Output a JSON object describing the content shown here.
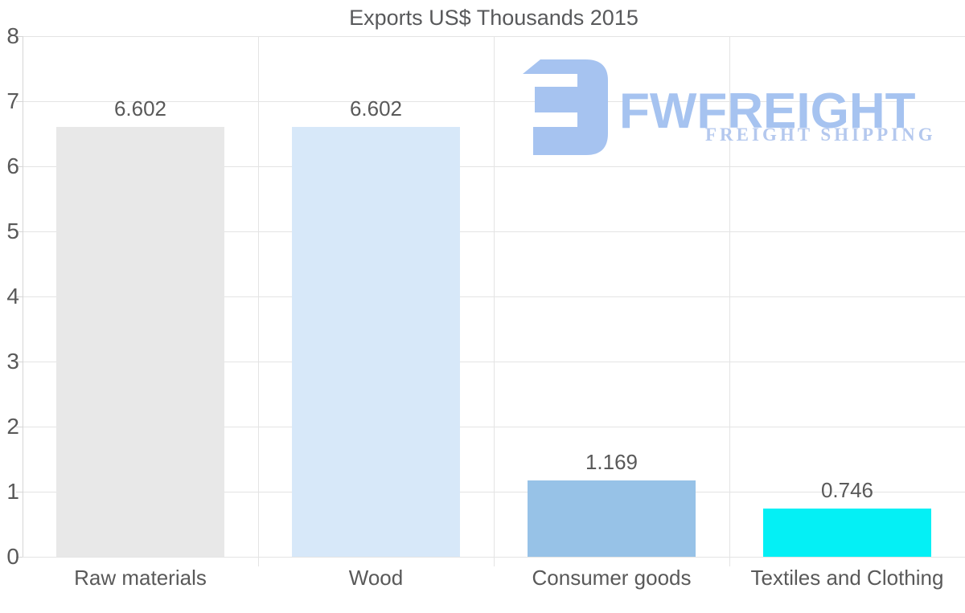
{
  "logo": {
    "name": "FWFREIGHT",
    "tagline": "FREIGHT SHIPPING",
    "color": "#a6c3f0",
    "tagline_color": "#b4c8ee"
  },
  "chart_data": {
    "type": "bar",
    "title": "Exports US$ Thousands 2015",
    "categories": [
      "Raw materials",
      "Wood",
      "Consumer goods",
      "Textiles and Clothing"
    ],
    "values": [
      6.602,
      6.602,
      1.169,
      0.746
    ],
    "value_labels": [
      "6.602",
      "6.602",
      "1.169",
      "0.746"
    ],
    "bar_colors": [
      "#e8e8e8",
      "#d7e8f9",
      "#97c2e7",
      "#04f0f5"
    ],
    "xlabel": "",
    "ylabel": "",
    "ylim": [
      0,
      8
    ],
    "y_ticks": [
      0,
      1,
      2,
      3,
      4,
      5,
      6,
      7,
      8
    ],
    "grid": true,
    "legend": false
  },
  "colors": {
    "text": "#595959",
    "gridline": "#e4e4e4",
    "axis": "#d6d6d6",
    "background": "#ffffff"
  }
}
